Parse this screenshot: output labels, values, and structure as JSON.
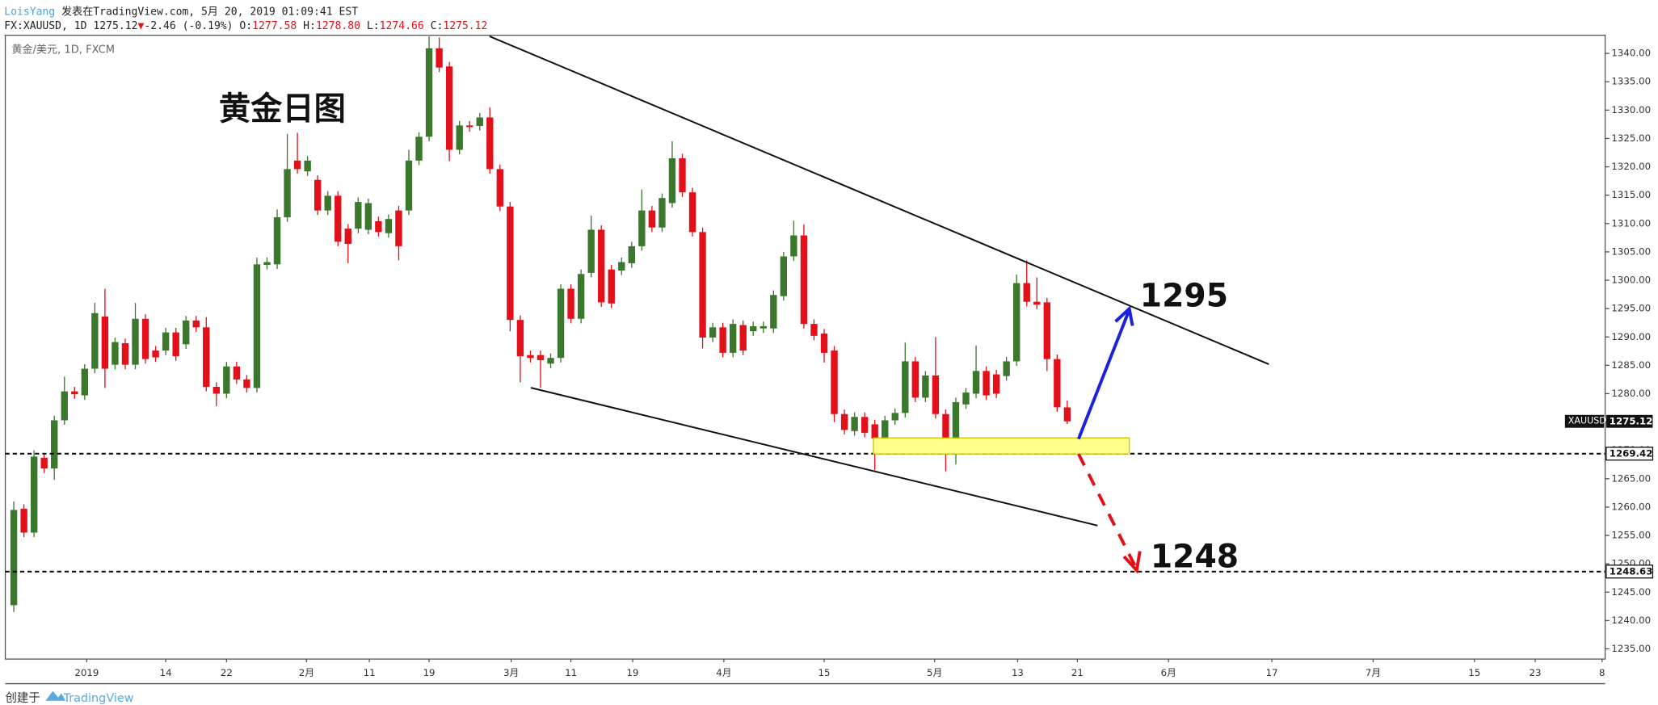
{
  "header": {
    "author": "LoisYang",
    "published": "发表在TradingView.com, 5月 20, 2019 01:09:41 EST",
    "symbol": "FX:XAUUSD, 1D",
    "last": "1275.12",
    "arrow": "▼",
    "change": "-2.46 (-0.19%)",
    "o_label": "O:",
    "o": "1277.58",
    "h_label": "H:",
    "h": "1278.80",
    "l_label": "L:",
    "l": "1274.66",
    "c_label": "C:",
    "c": "1275.12"
  },
  "chart_data": {
    "type": "candlestick",
    "title": "黄金日图",
    "subtitle": "黄金/美元, 1D, FXCM",
    "symbol_label": "XAUUSD",
    "up_color": "#3b772c",
    "down_color": "#e3101a",
    "open": [
      1242.7,
      1259.7,
      1255.5,
      1268.7,
      1266.8,
      1275.3,
      1280.4,
      1279.7,
      1284.4,
      1293.6,
      1285.1,
      1288.9,
      1285.1,
      1293.2,
      1287.6,
      1287.6,
      1290.8,
      1288.7,
      1292.9,
      1291.7,
      1281.2,
      1280.0,
      1284.8,
      1282.5,
      1281.0,
      1302.7,
      1302.8,
      1311.1,
      1321.1,
      1319.2,
      1317.7,
      1312.3,
      1314.9,
      1309.1,
      1309.1,
      1308.9,
      1310.4,
      1308.3,
      1312.3,
      1312.3,
      1321.1,
      1325.3,
      1340.9,
      1337.7,
      1323.0,
      1327.3,
      1327.2,
      1328.7,
      1319.6,
      1313.0,
      1293.0,
      1286.8,
      1286.8,
      1285.3,
      1286.3,
      1298.5,
      1293.2,
      1301.3,
      1308.9,
      1301.9,
      1301.7,
      1303.0,
      1306.0,
      1312.3,
      1309.3,
      1313.6,
      1321.5,
      1315.5,
      1308.5,
      1289.9,
      1291.7,
      1287.2,
      1292.1,
      1291.0,
      1291.5,
      1291.5,
      1297.2,
      1304.2,
      1307.9,
      1292.3,
      1290.6,
      1287.6,
      1276.4,
      1273.4,
      1275.9,
      1274.6,
      1272.1,
      1275.3,
      1276.6,
      1285.7,
      1279.3,
      1283.2,
      1276.4,
      1270.2,
      1278.1,
      1280.0,
      1284.0,
      1283.4,
      1283.1,
      1285.7,
      1299.5,
      1296.2,
      1296.1,
      1286.1,
      1277.58
    ],
    "high": [
      1261,
      1260.5,
      1270,
      1269.5,
      1276.1,
      1283,
      1281.2,
      1285.2,
      1296,
      1298.5,
      1289.9,
      1289.7,
      1296,
      1294,
      1288.4,
      1291.6,
      1291.6,
      1293.7,
      1293.7,
      1293.5,
      1282,
      1285.6,
      1285.6,
      1283.3,
      1304,
      1304,
      1312.5,
      1325.8,
      1326,
      1321.9,
      1318.5,
      1315.7,
      1315.7,
      1309.9,
      1314.6,
      1314.4,
      1311.2,
      1311.6,
      1313.1,
      1323,
      1326.1,
      1343,
      1342.8,
      1338.5,
      1328.1,
      1328.1,
      1329.5,
      1330.5,
      1320.4,
      1313.8,
      1293.8,
      1287.6,
      1287.6,
      1287.1,
      1299.3,
      1299.3,
      1301.9,
      1311.4,
      1309.7,
      1302.7,
      1304,
      1306.8,
      1316,
      1313.1,
      1315.3,
      1324.5,
      1322.3,
      1316.3,
      1309.3,
      1292.5,
      1292.5,
      1293.1,
      1292.9,
      1292.7,
      1292.7,
      1298.2,
      1305,
      1310.5,
      1309.8,
      1293.1,
      1291.4,
      1288.4,
      1277.2,
      1276.7,
      1276.7,
      1275.4,
      1276.1,
      1277.4,
      1289,
      1286.5,
      1284,
      1290,
      1277.2,
      1279.3,
      1281,
      1288.5,
      1284.8,
      1284.2,
      1286.5,
      1301,
      1303.5,
      1300.5,
      1296.9,
      1286.9,
      1278.8
    ],
    "low": [
      1241.5,
      1254.7,
      1254.7,
      1266,
      1264.8,
      1274.5,
      1279.1,
      1278.9,
      1283.6,
      1281,
      1284.3,
      1284.3,
      1284.3,
      1285.3,
      1285.6,
      1286.8,
      1285.8,
      1287.9,
      1290.9,
      1280.4,
      1277.8,
      1279.2,
      1281.7,
      1280.2,
      1280.2,
      1301.9,
      1302,
      1310.3,
      1318.8,
      1318.4,
      1311.5,
      1311.5,
      1306,
      1303,
      1308.3,
      1308.1,
      1307.7,
      1307.5,
      1303.5,
      1311.5,
      1320.3,
      1324.5,
      1336.7,
      1321,
      1322.2,
      1326.2,
      1326.4,
      1318.8,
      1312.2,
      1291,
      1282,
      1285.5,
      1281,
      1284.5,
      1285.5,
      1292.4,
      1292.4,
      1300.5,
      1295.3,
      1295.1,
      1300.9,
      1302.2,
      1305.2,
      1308.5,
      1308.5,
      1312.8,
      1314.7,
      1307.7,
      1288,
      1289.1,
      1286.4,
      1286.4,
      1286.8,
      1290.2,
      1290.7,
      1290.7,
      1296.4,
      1303.4,
      1291.5,
      1289.4,
      1285.5,
      1275,
      1272.8,
      1272.6,
      1272.3,
      1266.5,
      1271.3,
      1274.5,
      1275.8,
      1278.5,
      1278.5,
      1275.6,
      1266.3,
      1267.5,
      1277.3,
      1279.2,
      1278.9,
      1279.2,
      1282.3,
      1284.9,
      1295.4,
      1294.9,
      1284,
      1276.8,
      1274.66
    ],
    "close": [
      1259.5,
      1255.5,
      1268.9,
      1266.8,
      1275.3,
      1280.4,
      1279.9,
      1284.4,
      1294.2,
      1284.4,
      1289.1,
      1285.1,
      1293.2,
      1286.1,
      1286.4,
      1290.8,
      1286.6,
      1292.9,
      1291.7,
      1281.2,
      1280.0,
      1284.8,
      1282.5,
      1281.0,
      1302.8,
      1303.2,
      1311.1,
      1319.6,
      1319.6,
      1321.1,
      1312.3,
      1314.9,
      1306.8,
      1306.4,
      1313.8,
      1313.6,
      1308.5,
      1310.8,
      1306.0,
      1321.1,
      1325.3,
      1340.9,
      1337.5,
      1323.0,
      1327.3,
      1327.0,
      1328.7,
      1319.6,
      1313.0,
      1293.0,
      1286.6,
      1286.3,
      1285.9,
      1286.3,
      1298.5,
      1293.2,
      1301.1,
      1308.9,
      1296.1,
      1295.9,
      1303.2,
      1306.0,
      1312.3,
      1309.3,
      1314.5,
      1321.5,
      1315.5,
      1308.5,
      1289.9,
      1291.7,
      1287.2,
      1292.3,
      1287.6,
      1291.9,
      1291.9,
      1297.4,
      1304.2,
      1307.9,
      1292.3,
      1290.2,
      1287.2,
      1276.4,
      1273.6,
      1275.9,
      1273.1,
      1272.1,
      1275.3,
      1276.6,
      1285.7,
      1279.3,
      1283.2,
      1276.4,
      1270.2,
      1278.5,
      1280.2,
      1284.0,
      1279.7,
      1280.0,
      1285.7,
      1299.5,
      1296.2,
      1295.7,
      1286.1,
      1277.6,
      1275.12
    ],
    "xlim": [
      -0.84,
      157.1
    ],
    "xticks": [
      {
        "value": 7.2,
        "label": "2019"
      },
      {
        "value": 15,
        "label": "14"
      },
      {
        "value": 21,
        "label": "22"
      },
      {
        "value": 28.9,
        "label": "2月"
      },
      {
        "value": 35.1,
        "label": "11"
      },
      {
        "value": 41,
        "label": "19"
      },
      {
        "value": 49.1,
        "label": "3月"
      },
      {
        "value": 55,
        "label": "11"
      },
      {
        "value": 61.1,
        "label": "19"
      },
      {
        "value": 70.1,
        "label": "4月"
      },
      {
        "value": 80,
        "label": "15"
      },
      {
        "value": 90.9,
        "label": "5月"
      },
      {
        "value": 99.1,
        "label": "13"
      },
      {
        "value": 105,
        "label": "21"
      },
      {
        "value": 114,
        "label": "6月"
      },
      {
        "value": 124.2,
        "label": "17"
      },
      {
        "value": 134.2,
        "label": "7月"
      },
      {
        "value": 144.2,
        "label": "15"
      },
      {
        "value": 150.2,
        "label": "23"
      },
      {
        "value": 156.8,
        "label": "8"
      }
    ],
    "ylim": [
      1233.2,
      1343.2
    ],
    "yticks": [
      {
        "value": 1235,
        "label": "1235.00"
      },
      {
        "value": 1240,
        "label": "1240.00"
      },
      {
        "value": 1245,
        "label": "1245.00"
      },
      {
        "value": 1250,
        "label": "1250.00"
      },
      {
        "value": 1255,
        "label": "1255.00"
      },
      {
        "value": 1260,
        "label": "1260.00"
      },
      {
        "value": 1265,
        "label": "1265.00"
      },
      {
        "value": 1270,
        "label": "1270.00"
      },
      {
        "value": 1275,
        "label": "1275.00"
      },
      {
        "value": 1280,
        "label": "1280.00"
      },
      {
        "value": 1285,
        "label": "1285.00"
      },
      {
        "value": 1290,
        "label": "1290.00"
      },
      {
        "value": 1295,
        "label": "1295.00"
      },
      {
        "value": 1300,
        "label": "1300.00"
      },
      {
        "value": 1305,
        "label": "1305.00"
      },
      {
        "value": 1310,
        "label": "1310.00"
      },
      {
        "value": 1315,
        "label": "1315.00"
      },
      {
        "value": 1320,
        "label": "1320.00"
      },
      {
        "value": 1325,
        "label": "1325.00"
      },
      {
        "value": 1330,
        "label": "1330.00"
      },
      {
        "value": 1335,
        "label": "1335.00"
      },
      {
        "value": 1340,
        "label": "1340.00"
      }
    ],
    "hlines": [
      1269.42,
      1248.63
    ],
    "annotations": [
      "1295",
      "1248"
    ]
  },
  "footer": {
    "created": "创建于",
    "brand": "TradingView"
  }
}
